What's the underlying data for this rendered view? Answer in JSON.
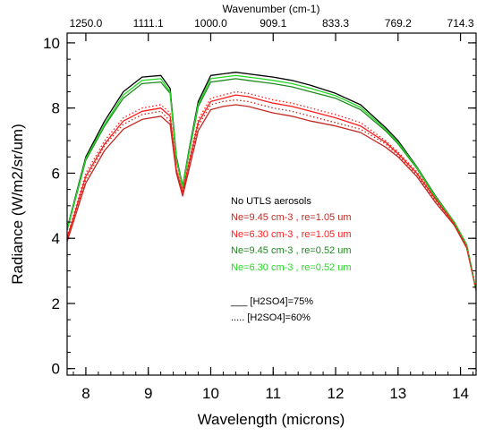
{
  "chart_data": {
    "type": "line",
    "title": "",
    "xlabel": "Wavelength (microns)",
    "ylabel": "Radiance (W/m2/sr/um)",
    "top_axis_label": "Wavenumber (cm-1)",
    "xlim": [
      7.7,
      14.25
    ],
    "ylim": [
      -0.2,
      10.3
    ],
    "x_ticks": [
      8,
      9,
      10,
      11,
      12,
      13,
      14
    ],
    "y_ticks": [
      0,
      2,
      4,
      6,
      8,
      10
    ],
    "top_ticks": [
      {
        "wavelength": 8.0,
        "label": "1250.0"
      },
      {
        "wavelength": 9.0,
        "label": "1111.1"
      },
      {
        "wavelength": 10.0,
        "label": "1000.0"
      },
      {
        "wavelength": 11.0,
        "label": "909.1"
      },
      {
        "wavelength": 12.0,
        "label": "833.3"
      },
      {
        "wavelength": 13.0,
        "label": "769.2"
      },
      {
        "wavelength": 14.0,
        "label": "714.3"
      }
    ],
    "grid": false,
    "legend_position": "center-right",
    "series": [
      {
        "name": "No UTLS aerosols",
        "color": "#000000",
        "style": "solid",
        "x": [
          7.7,
          8.0,
          8.3,
          8.6,
          8.9,
          9.2,
          9.35,
          9.45,
          9.55,
          9.65,
          9.8,
          10.0,
          10.2,
          10.4,
          10.6,
          10.8,
          11.0,
          11.3,
          11.6,
          12.0,
          12.4,
          12.8,
          13.0,
          13.3,
          13.6,
          13.9,
          14.1,
          14.25
        ],
        "values": [
          4.3,
          6.5,
          7.6,
          8.5,
          8.95,
          9.0,
          8.6,
          6.5,
          5.6,
          6.7,
          8.2,
          9.0,
          9.05,
          9.1,
          9.05,
          9.0,
          8.95,
          8.85,
          8.7,
          8.45,
          8.1,
          7.4,
          7.0,
          6.2,
          5.3,
          4.5,
          3.8,
          2.4
        ]
      },
      {
        "name": "Ne=9.45 cm-3 , re=1.05 um",
        "color": "#c22a22",
        "style": "solid",
        "x": [
          7.7,
          8.0,
          8.3,
          8.6,
          8.9,
          9.2,
          9.35,
          9.45,
          9.55,
          9.65,
          9.8,
          10.0,
          10.2,
          10.4,
          10.6,
          10.8,
          11.0,
          11.3,
          11.6,
          12.0,
          12.4,
          12.8,
          13.0,
          13.3,
          13.6,
          13.9,
          14.1,
          14.25
        ],
        "values": [
          3.9,
          5.7,
          6.7,
          7.35,
          7.65,
          7.75,
          7.5,
          6.0,
          5.3,
          6.1,
          7.3,
          7.95,
          8.05,
          8.1,
          8.05,
          7.95,
          7.85,
          7.75,
          7.6,
          7.45,
          7.25,
          6.8,
          6.5,
          5.9,
          5.1,
          4.4,
          3.7,
          2.4
        ]
      },
      {
        "name": "Ne=6.30 cm-3 , re=1.05 um",
        "color": "#ff1c1c",
        "style": "solid",
        "x": [
          7.7,
          8.0,
          8.3,
          8.6,
          8.9,
          9.2,
          9.35,
          9.45,
          9.55,
          9.65,
          9.8,
          10.0,
          10.2,
          10.4,
          10.6,
          10.8,
          11.0,
          11.3,
          11.6,
          12.0,
          12.4,
          12.8,
          13.0,
          13.3,
          13.6,
          13.9,
          14.1,
          14.25
        ],
        "values": [
          4.0,
          5.9,
          6.9,
          7.6,
          7.9,
          8.0,
          7.75,
          6.1,
          5.4,
          6.3,
          7.55,
          8.2,
          8.3,
          8.4,
          8.35,
          8.25,
          8.15,
          8.05,
          7.9,
          7.7,
          7.45,
          6.95,
          6.6,
          6.0,
          5.2,
          4.45,
          3.75,
          2.4
        ]
      },
      {
        "name": "Ne=9.45 cm-3 , re=0.52 um",
        "color": "#1f8a1f",
        "style": "solid",
        "x": [
          7.7,
          8.0,
          8.3,
          8.6,
          8.9,
          9.2,
          9.35,
          9.45,
          9.55,
          9.65,
          9.8,
          10.0,
          10.2,
          10.4,
          10.6,
          10.8,
          11.0,
          11.3,
          11.6,
          12.0,
          12.4,
          12.8,
          13.0,
          13.3,
          13.6,
          13.9,
          14.1,
          14.25
        ],
        "values": [
          4.25,
          6.4,
          7.45,
          8.3,
          8.75,
          8.8,
          8.45,
          6.4,
          5.55,
          6.6,
          8.05,
          8.8,
          8.85,
          8.9,
          8.85,
          8.8,
          8.75,
          8.65,
          8.5,
          8.3,
          7.95,
          7.3,
          6.9,
          6.15,
          5.25,
          4.5,
          3.8,
          2.4
        ]
      },
      {
        "name": "Ne=6.30 cm-3 , re=0.52 um",
        "color": "#25d825",
        "style": "solid",
        "x": [
          7.7,
          8.0,
          8.3,
          8.6,
          8.9,
          9.2,
          9.35,
          9.45,
          9.55,
          9.65,
          9.8,
          10.0,
          10.2,
          10.4,
          10.6,
          10.8,
          11.0,
          11.3,
          11.6,
          12.0,
          12.4,
          12.8,
          13.0,
          13.3,
          13.6,
          13.9,
          14.1,
          14.25
        ],
        "values": [
          4.28,
          6.45,
          7.5,
          8.4,
          8.85,
          8.9,
          8.5,
          6.45,
          5.58,
          6.65,
          8.12,
          8.9,
          8.95,
          9.0,
          8.95,
          8.9,
          8.85,
          8.75,
          8.6,
          8.38,
          8.02,
          7.35,
          6.95,
          6.18,
          5.28,
          4.5,
          3.8,
          2.4
        ]
      },
      {
        "name": "Ne=9.45 cm-3 , re=1.05 um ([H2SO4]=60%)",
        "color": "#c22a22",
        "style": "dotted",
        "x": [
          7.7,
          8.0,
          8.3,
          8.6,
          8.9,
          9.2,
          9.35,
          9.45,
          9.55,
          9.65,
          9.8,
          10.0,
          10.2,
          10.4,
          10.6,
          10.8,
          11.0,
          11.3,
          11.6,
          12.0,
          12.4,
          12.8,
          13.0,
          13.3,
          13.6,
          13.9,
          14.1,
          14.25
        ],
        "values": [
          3.95,
          5.8,
          6.85,
          7.5,
          7.8,
          7.9,
          7.6,
          6.05,
          5.35,
          6.2,
          7.45,
          8.1,
          8.2,
          8.25,
          8.2,
          8.1,
          8.0,
          7.9,
          7.75,
          7.55,
          7.35,
          6.9,
          6.55,
          5.95,
          5.15,
          4.42,
          3.72,
          2.4
        ]
      },
      {
        "name": "Ne=6.30 cm-3 , re=1.05 um ([H2SO4]=60%)",
        "color": "#ff1c1c",
        "style": "dotted",
        "x": [
          7.7,
          8.0,
          8.3,
          8.6,
          8.9,
          9.2,
          9.35,
          9.45,
          9.55,
          9.65,
          9.8,
          10.0,
          10.2,
          10.4,
          10.6,
          10.8,
          11.0,
          11.3,
          11.6,
          12.0,
          12.4,
          12.8,
          13.0,
          13.3,
          13.6,
          13.9,
          14.1,
          14.25
        ],
        "values": [
          4.05,
          6.0,
          7.0,
          7.7,
          8.0,
          8.1,
          7.85,
          6.15,
          5.45,
          6.35,
          7.65,
          8.3,
          8.4,
          8.5,
          8.45,
          8.35,
          8.25,
          8.15,
          8.0,
          7.8,
          7.55,
          7.0,
          6.65,
          6.05,
          5.22,
          4.47,
          3.77,
          2.4
        ]
      }
    ],
    "legend": {
      "entries": [
        {
          "label": "No UTLS aerosols",
          "color": "#000000"
        },
        {
          "label": "Ne=9.45 cm-3 , re=1.05 um",
          "color": "#c22a22"
        },
        {
          "label": "Ne=6.30 cm-3 , re=1.05 um",
          "color": "#ff1c1c"
        },
        {
          "label": "Ne=9.45 cm-3 , re=0.52 um",
          "color": "#1f8a1f"
        },
        {
          "label": "Ne=6.30 cm-3 , re=0.52 um",
          "color": "#25d825"
        }
      ],
      "line_styles": [
        {
          "label": "___ [H2SO4]=75%",
          "style": "solid"
        },
        {
          "label": "..... [H2SO4]=60%",
          "style": "dotted"
        }
      ]
    }
  }
}
